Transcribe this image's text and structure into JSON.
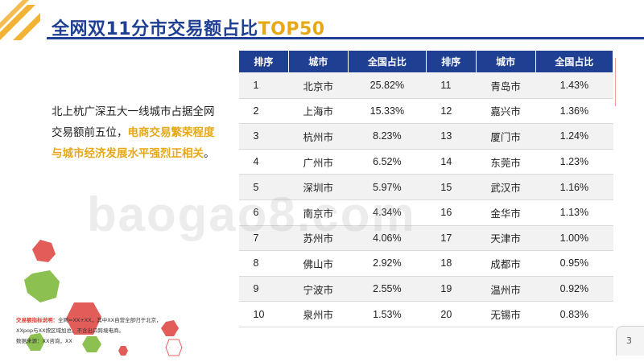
{
  "title": {
    "main": "全网双11分市交易额占比",
    "highlight": "TOP50"
  },
  "description": {
    "plain": "北上杭广深五大一线城市占据全网交易额前五位，",
    "highlight": "电商交易繁荣程度与城市经济发展水平强烈正相关",
    "end": "。"
  },
  "table": {
    "headers": [
      "排序",
      "城市",
      "全国占比",
      "排序",
      "城市",
      "全国占比"
    ],
    "rows": [
      [
        "1",
        "北京市",
        "25.82%",
        "11",
        "青岛市",
        "1.43%"
      ],
      [
        "2",
        "上海市",
        "15.33%",
        "12",
        "嘉兴市",
        "1.36%"
      ],
      [
        "3",
        "杭州市",
        "8.23%",
        "13",
        "厦门市",
        "1.24%"
      ],
      [
        "4",
        "广州市",
        "6.52%",
        "14",
        "东莞市",
        "1.23%"
      ],
      [
        "5",
        "深圳市",
        "5.97%",
        "15",
        "武汉市",
        "1.16%"
      ],
      [
        "6",
        "南京市",
        "4.34%",
        "16",
        "金华市",
        "1.13%"
      ],
      [
        "7",
        "苏州市",
        "4.06%",
        "17",
        "天津市",
        "1.00%"
      ],
      [
        "8",
        "佛山市",
        "2.92%",
        "18",
        "成都市",
        "0.95%"
      ],
      [
        "9",
        "宁波市",
        "2.55%",
        "19",
        "温州市",
        "0.92%"
      ],
      [
        "10",
        "泉州市",
        "1.53%",
        "20",
        "无锡市",
        "0.83%"
      ]
    ]
  },
  "note": {
    "label": "交易额指标说明：",
    "line1": "全网=XX+XX，其中XX自营全部归于北京，",
    "line2": "XXpop与XX按区域加总，不含出口跨境电商。",
    "line3": "数据来源：XX咨询，XX"
  },
  "watermark": "baogao8.com",
  "page_number": "3",
  "colors": {
    "primary": "#1f3f93",
    "accent": "#e6a817",
    "hex_red": "#e25c5a",
    "hex_green": "#8cc152"
  }
}
